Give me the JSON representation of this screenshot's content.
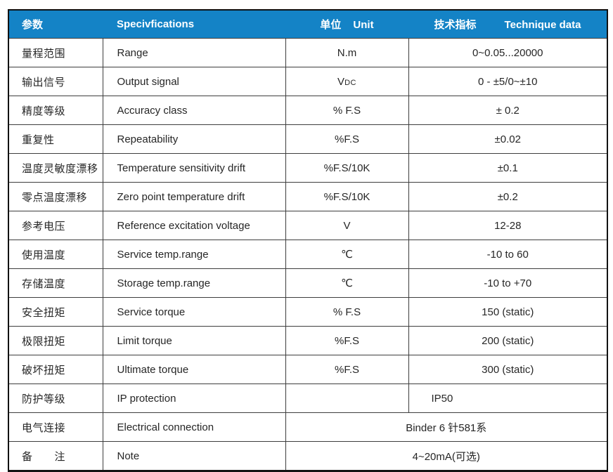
{
  "table": {
    "header": {
      "param_zh": "参数",
      "spec_en": "Specivfications",
      "unit_zh": "单位",
      "unit_en": "Unit",
      "tech_zh": "技术指标",
      "tech_en": "Technique data"
    },
    "rows": [
      {
        "zh": "量程范围",
        "en": "Range",
        "unit": "N.m",
        "value": "0~0.05...20000"
      },
      {
        "zh": "输出信号",
        "en": "Output signal",
        "unit_main": "V",
        "unit_sub": "DC",
        "value": "0 - ±5/0~±10"
      },
      {
        "zh": "精度等级",
        "en": "Accuracy class",
        "unit": "% F.S",
        "value": "± 0.2"
      },
      {
        "zh": "重复性",
        "en": "Repeatability",
        "unit": "%F.S",
        "value": "±0.02"
      },
      {
        "zh": "温度灵敏度漂移",
        "en": "Temperature sensitivity drift",
        "unit": "%F.S/10K",
        "value": "±0.1"
      },
      {
        "zh": "零点温度漂移",
        "en": "Zero point temperature drift",
        "unit": "%F.S/10K",
        "value": "±0.2"
      },
      {
        "zh": "参考电压",
        "en": "Reference excitation voltage",
        "unit": "V",
        "value": "12-28"
      },
      {
        "zh": "使用温度",
        "en": "Service temp.range",
        "unit": "℃",
        "value": "-10 to 60"
      },
      {
        "zh": "存储温度",
        "en": "Storage temp.range",
        "unit": "℃",
        "value": "-10 to +70"
      },
      {
        "zh": "安全扭矩",
        "en": "Service torque",
        "unit": "% F.S",
        "value": "150 (static)"
      },
      {
        "zh": "极限扭矩",
        "en": "Limit torque",
        "unit": "%F.S",
        "value": "200 (static)"
      },
      {
        "zh": "破坏扭矩",
        "en": "Ultimate torque",
        "unit": "%F.S",
        "value": "300 (static)"
      },
      {
        "zh": "防护等级",
        "en": "IP protection",
        "unit": "",
        "value": "IP50"
      },
      {
        "zh": "电气连接",
        "en": "Electrical connection",
        "value": "Binder 6 针581系"
      },
      {
        "zh": "备　　注",
        "en": "Note",
        "value": "4~20mA(可选)"
      }
    ],
    "colors": {
      "header_bg": "#1483C6",
      "header_text": "#FFFFFF",
      "body_text": "#262626",
      "inner_border": "#3D3D3D",
      "outer_border": "#111111"
    }
  }
}
